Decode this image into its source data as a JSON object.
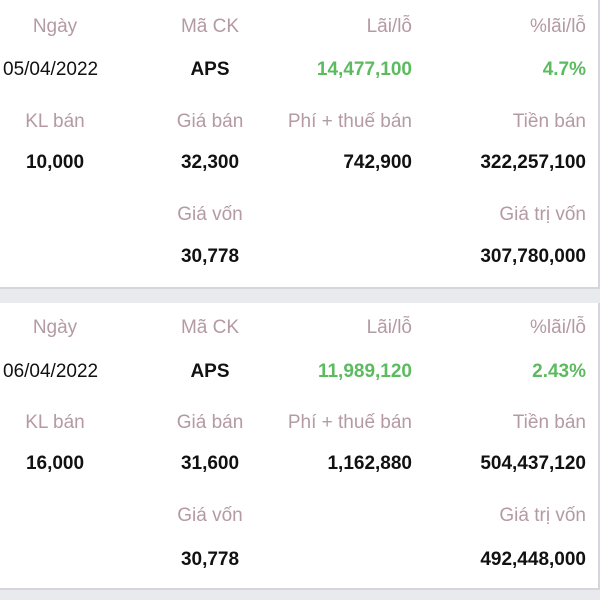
{
  "labels": {
    "date": "Ngày",
    "ticker": "Mã CK",
    "profit": "Lãi/lỗ",
    "profit_pct": "%lãi/lỗ",
    "qty_sold": "KL bán",
    "sell_price": "Giá bán",
    "fee_tax": "Phí + thuế bán",
    "proceeds": "Tiền bán",
    "cost_price": "Giá vốn",
    "cost_value": "Giá trị vốn"
  },
  "colors": {
    "label": "#b49aa3",
    "positive": "#5cbb5f",
    "value": "#111111",
    "separator": "#e9eaee"
  },
  "records": [
    {
      "date": "05/04/2022",
      "ticker": "APS",
      "profit": "14,477,100",
      "profit_pct": "4.7%",
      "qty_sold": "10,000",
      "sell_price": "32,300",
      "fee_tax": "742,900",
      "proceeds": "322,257,100",
      "cost_price": "30,778",
      "cost_value": "307,780,000"
    },
    {
      "date": "06/04/2022",
      "ticker": "APS",
      "profit": "11,989,120",
      "profit_pct": "2.43%",
      "qty_sold": "16,000",
      "sell_price": "31,600",
      "fee_tax": "1,162,880",
      "proceeds": "504,437,120",
      "cost_price": "30,778",
      "cost_value": "492,448,000"
    }
  ]
}
